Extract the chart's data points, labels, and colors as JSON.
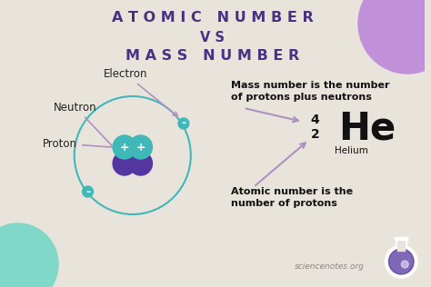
{
  "bg_color": "#e8e4dc",
  "title_line1": "A T O M I C   N U M B E R",
  "title_line2": "V S",
  "title_line3": "M A S S   N U M B E R",
  "title_color": "#4a3080",
  "title_fontsize": 11.5,
  "label_electron": "Electron",
  "label_neutron": "Neutron",
  "label_proton": "Proton",
  "label_color": "#222222",
  "label_fontsize": 8.5,
  "arrow_color": "#b090c0",
  "orbit_color": "#40b8b8",
  "proton_color": "#40b8b8",
  "neutron_color": "#5535a0",
  "electron_color": "#40b8b8",
  "mass_text1": "Mass number is the number",
  "mass_text2": "of protons plus neutrons",
  "atomic_text1": "Atomic number is the",
  "atomic_text2": "number of protons",
  "info_color": "#111111",
  "info_fontsize": 8,
  "he_symbol": "He",
  "he_mass": "4",
  "he_atomic": "2",
  "he_name": "Helium",
  "watermark": "sciencenotes.org",
  "deco_color_top": "#c090d8",
  "deco_color_bottom": "#80d8c8"
}
